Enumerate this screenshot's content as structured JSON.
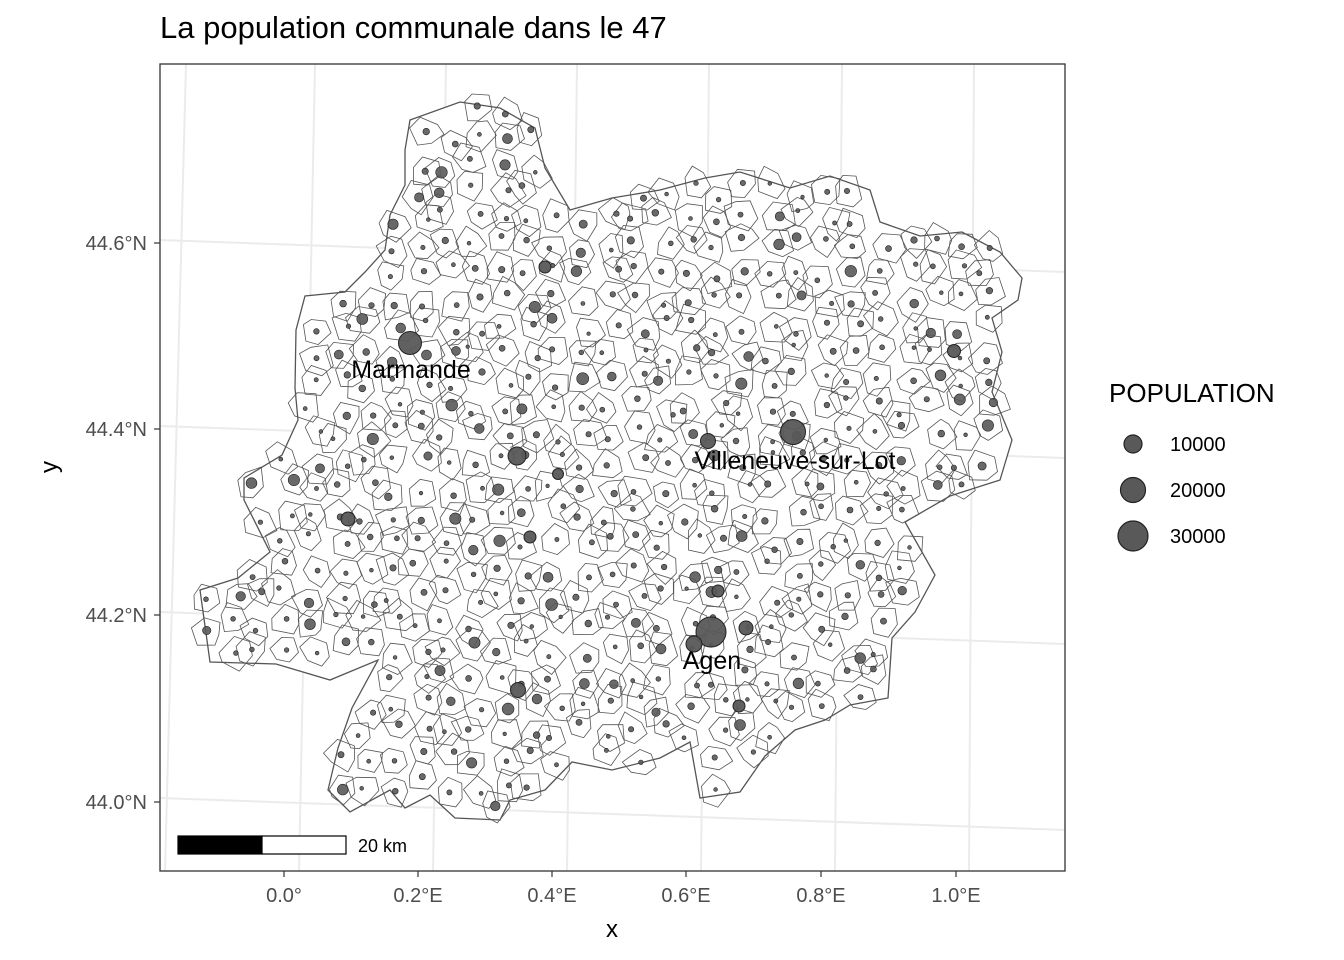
{
  "title": "La population communale dans le 47",
  "axes": {
    "xlabel": "x",
    "ylabel": "y",
    "x_ticks": [
      "0.0°",
      "0.2°E",
      "0.4°E",
      "0.6°E",
      "0.8°E",
      "1.0°E"
    ],
    "y_ticks": [
      "44.0°N",
      "44.2°N",
      "44.4°N",
      "44.6°N"
    ]
  },
  "labels": [
    {
      "name": "Marmande"
    },
    {
      "name": "Villeneuve-sur-Lot"
    },
    {
      "name": "Agen"
    }
  ],
  "scalebar": {
    "label": "20 km"
  },
  "legend": {
    "title": "POPULATION",
    "items": [
      {
        "label": "10000",
        "value": 10000
      },
      {
        "label": "20000",
        "value": 20000
      },
      {
        "label": "30000",
        "value": 30000
      }
    ]
  },
  "colors": {
    "point_fill": "#595959",
    "point_stroke": "#222222",
    "boundary": "#555555",
    "grid": "#ebebeb",
    "panel_border": "#333333"
  }
}
